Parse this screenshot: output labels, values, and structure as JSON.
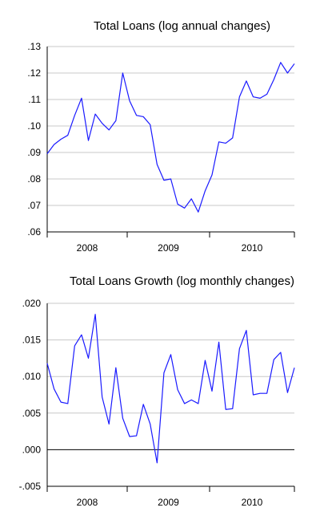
{
  "chart_data": [
    {
      "type": "line",
      "title": "Total Loans (log annual changes)",
      "xlabel": "",
      "ylabel": "",
      "ylim": [
        0.06,
        0.13
      ],
      "yticks": [
        0.06,
        0.07,
        0.08,
        0.09,
        0.1,
        0.11,
        0.12,
        0.13
      ],
      "ytick_labels": [
        ".06",
        ".07",
        ".08",
        ".09",
        ".10",
        ".11",
        ".12",
        ".13"
      ],
      "xtick_labels": [
        "2008",
        "2009",
        "2010"
      ],
      "grid": "horizontal",
      "line_color": "#1a1aff",
      "series": [
        {
          "values": [
            0.0895,
            0.093,
            0.095,
            0.0965,
            0.104,
            0.1105,
            0.0945,
            0.1045,
            0.101,
            0.0985,
            0.102,
            0.12,
            0.1095,
            0.104,
            0.1035,
            0.1005,
            0.0855,
            0.0795,
            0.08,
            0.0705,
            0.069,
            0.0725,
            0.0675,
            0.0755,
            0.0815,
            0.094,
            0.0935,
            0.0955,
            0.111,
            0.117,
            0.111,
            0.1105,
            0.112,
            0.1175,
            0.124,
            0.12,
            0.1235
          ]
        }
      ]
    },
    {
      "type": "line",
      "title": "Total Loans Growth (log monthly changes)",
      "xlabel": "",
      "ylabel": "",
      "ylim": [
        -0.005,
        0.02
      ],
      "yticks": [
        -0.005,
        0.0,
        0.005,
        0.01,
        0.015,
        0.02
      ],
      "ytick_labels": [
        "-.005",
        ".000",
        ".005",
        ".010",
        ".015",
        ".020"
      ],
      "xtick_labels": [
        "2008",
        "2009",
        "2010"
      ],
      "grid": "horizontal",
      "zero_line": true,
      "line_color": "#1a1aff",
      "series": [
        {
          "values": [
            0.0118,
            0.0083,
            0.0065,
            0.0063,
            0.0142,
            0.0157,
            0.0125,
            0.0185,
            0.0072,
            0.0035,
            0.0112,
            0.0043,
            0.0018,
            0.0019,
            0.0062,
            0.0035,
            -0.0018,
            0.0105,
            0.013,
            0.0082,
            0.0063,
            0.0068,
            0.0063,
            0.0122,
            0.008,
            0.0147,
            0.0055,
            0.0056,
            0.0138,
            0.0163,
            0.0075,
            0.0077,
            0.0077,
            0.0123,
            0.0133,
            0.0078,
            0.0112
          ]
        }
      ]
    }
  ]
}
